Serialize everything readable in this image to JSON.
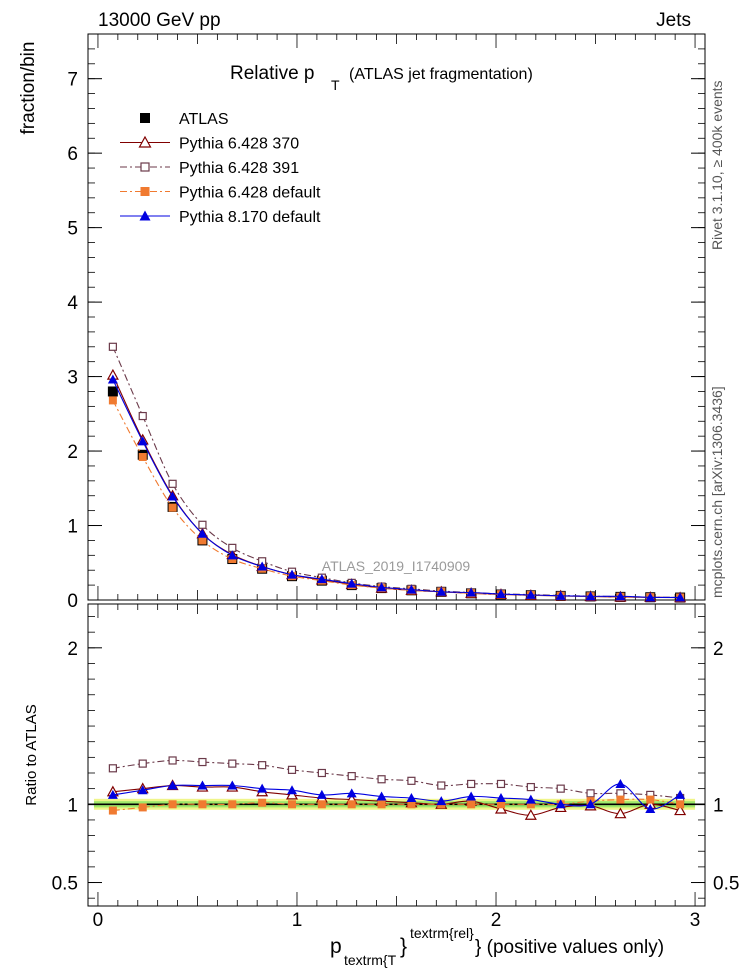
{
  "header": {
    "left": "13000 GeV pp",
    "right": "Jets",
    "side_top": "Rivet 3.1.10, ≥ 400k events",
    "side_bottom": "mcplots.cern.ch [arXiv:1306.3436]"
  },
  "chart_data": [
    {
      "type": "line",
      "title_main": "Relative p",
      "title_sub": "T",
      "title_rest": "(ATLAS jet fragmentation)",
      "ylabel": "fraction/bin",
      "ylim": [
        0,
        7.6
      ],
      "yticks": [
        0,
        1,
        2,
        3,
        4,
        5,
        6,
        7
      ],
      "xlim": [
        -0.05,
        3.05
      ],
      "watermark": "ATLAS_2019_I1740909",
      "legend_position": "top-left",
      "x": [
        0.075,
        0.225,
        0.375,
        0.525,
        0.675,
        0.825,
        0.975,
        1.125,
        1.275,
        1.425,
        1.575,
        1.725,
        1.875,
        2.025,
        2.175,
        2.325,
        2.475,
        2.625,
        2.775,
        2.925
      ],
      "series": [
        {
          "name": "ATLAS",
          "color": "#000000",
          "marker": "filled-square",
          "line": "none",
          "values": [
            2.8,
            1.95,
            1.25,
            0.8,
            0.55,
            0.42,
            0.32,
            0.26,
            0.2,
            0.16,
            0.13,
            0.11,
            0.09,
            0.075,
            0.065,
            0.055,
            0.048,
            0.042,
            0.037,
            0.033
          ]
        },
        {
          "name": "Pythia 6.428 370",
          "color": "#800000",
          "marker": "open-triangle",
          "line": "solid",
          "values": [
            3.02,
            2.15,
            1.4,
            0.89,
            0.61,
            0.45,
            0.34,
            0.27,
            0.21,
            0.16,
            0.13,
            0.11,
            0.09,
            0.075,
            0.063,
            0.055,
            0.047,
            0.04,
            0.036,
            0.032
          ]
        },
        {
          "name": "Pythia 6.428 391",
          "color": "#6b3a4a",
          "marker": "open-square",
          "line": "dashdot",
          "values": [
            3.4,
            2.47,
            1.56,
            1.01,
            0.7,
            0.52,
            0.38,
            0.3,
            0.23,
            0.18,
            0.15,
            0.12,
            0.1,
            0.083,
            0.072,
            0.061,
            0.052,
            0.045,
            0.039,
            0.034
          ]
        },
        {
          "name": "Pythia 6.428 default",
          "color": "#f07a30",
          "marker": "filled-square",
          "line": "dashdot",
          "values": [
            2.68,
            1.92,
            1.24,
            0.8,
            0.55,
            0.42,
            0.32,
            0.26,
            0.2,
            0.16,
            0.13,
            0.11,
            0.09,
            0.075,
            0.065,
            0.055,
            0.048,
            0.042,
            0.037,
            0.033
          ]
        },
        {
          "name": "Pythia 8.170 default",
          "color": "#0000e0",
          "marker": "filled-triangle",
          "line": "solid",
          "values": [
            2.96,
            2.13,
            1.39,
            0.89,
            0.6,
            0.45,
            0.34,
            0.28,
            0.22,
            0.17,
            0.14,
            0.11,
            0.1,
            0.08,
            0.068,
            0.056,
            0.049,
            0.049,
            0.036,
            0.035
          ]
        }
      ]
    },
    {
      "type": "line",
      "ylabel": "Ratio to ATLAS",
      "ylim": [
        0.35,
        2.28
      ],
      "yticks": [
        0.5,
        1,
        2
      ],
      "xlim": [
        -0.05,
        3.05
      ],
      "xticks": [
        0,
        1,
        2,
        3
      ],
      "xlabel_main": "p",
      "xlabel_sub": "textrm{T",
      "xlabel_close": "}",
      "xlabel_sup": "textrm{rel}",
      "xlabel_rest": "} (positive values only)",
      "band": {
        "inner": [
          0.98,
          1.02
        ],
        "outer": [
          0.965,
          1.035
        ],
        "inner_color": "#9ee86a",
        "outer_color": "#f0f58a"
      },
      "x": [
        0.075,
        0.225,
        0.375,
        0.525,
        0.675,
        0.825,
        0.975,
        1.125,
        1.275,
        1.425,
        1.575,
        1.725,
        1.875,
        2.025,
        2.175,
        2.325,
        2.475,
        2.625,
        2.775,
        2.925
      ],
      "series": [
        {
          "name": "Pythia 6.428 370",
          "color": "#800000",
          "marker": "open-triangle",
          "line": "solid",
          "values": [
            1.08,
            1.1,
            1.12,
            1.11,
            1.11,
            1.08,
            1.06,
            1.04,
            1.03,
            1.02,
            1.01,
            1.0,
            1.02,
            0.97,
            0.93,
            0.98,
            0.99,
            0.94,
            1.0,
            0.96
          ]
        },
        {
          "name": "Pythia 6.428 391",
          "color": "#6b3a4a",
          "marker": "open-square",
          "line": "dashdot",
          "values": [
            1.23,
            1.26,
            1.28,
            1.27,
            1.26,
            1.25,
            1.22,
            1.2,
            1.18,
            1.16,
            1.15,
            1.12,
            1.13,
            1.13,
            1.11,
            1.1,
            1.07,
            1.07,
            1.06,
            1.04
          ]
        },
        {
          "name": "Pythia 6.428 default",
          "color": "#f07a30",
          "marker": "filled-square",
          "line": "dashdot",
          "values": [
            0.96,
            0.98,
            1.0,
            1.0,
            1.0,
            1.01,
            1.0,
            1.0,
            1.0,
            1.0,
            1.0,
            1.0,
            1.0,
            1.0,
            1.0,
            1.0,
            1.02,
            1.03,
            1.03,
            1.0
          ]
        },
        {
          "name": "Pythia 8.170 default",
          "color": "#0000e0",
          "marker": "filled-triangle",
          "line": "solid",
          "values": [
            1.06,
            1.09,
            1.12,
            1.12,
            1.12,
            1.1,
            1.09,
            1.06,
            1.07,
            1.05,
            1.04,
            1.02,
            1.05,
            1.04,
            1.03,
            1.0,
            1.0,
            1.13,
            0.97,
            1.06
          ]
        }
      ]
    }
  ]
}
